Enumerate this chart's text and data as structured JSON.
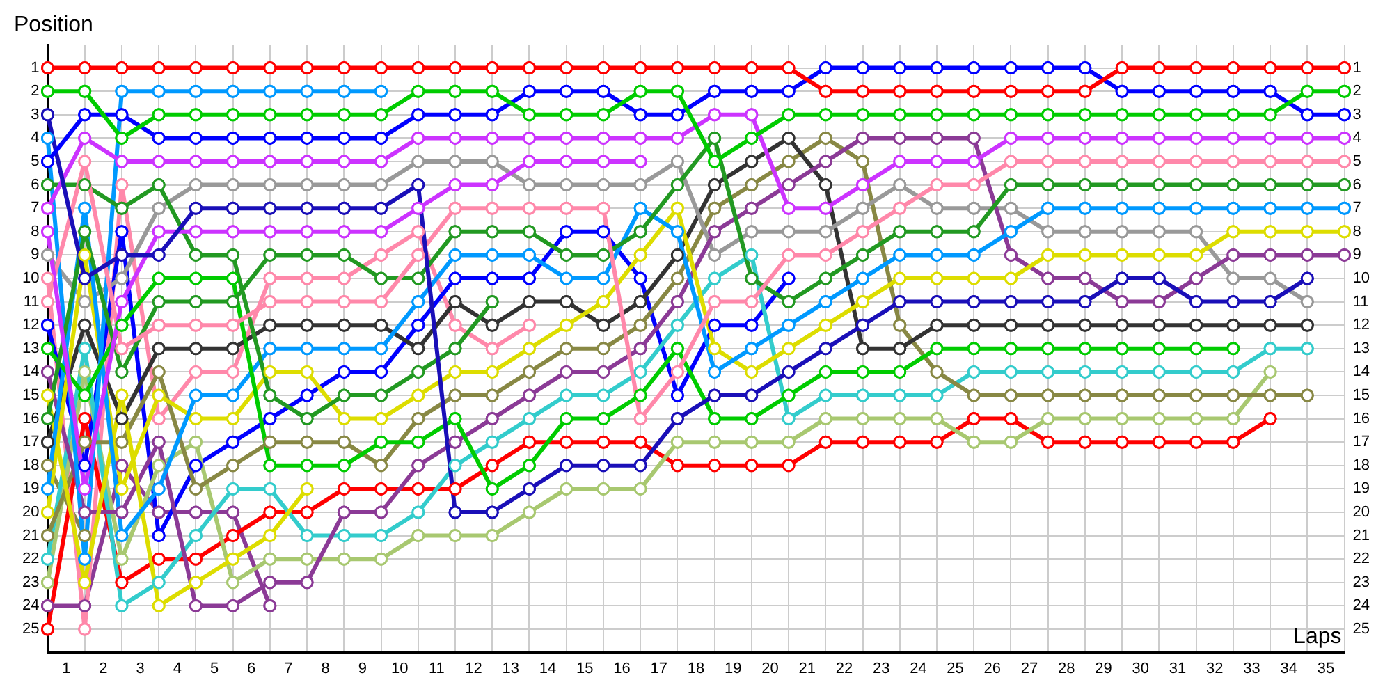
{
  "chart_data": {
    "type": "line",
    "xlabel": "Laps",
    "ylabel": "Position",
    "grid": true,
    "legend": false,
    "marker": "circle",
    "line_style": "solid",
    "x": [
      0,
      1,
      2,
      3,
      4,
      5,
      6,
      7,
      8,
      9,
      10,
      11,
      12,
      13,
      14,
      15,
      16,
      17,
      18,
      19,
      20,
      21,
      22,
      23,
      24,
      25,
      26,
      27,
      28,
      29,
      30,
      31,
      32,
      33,
      34,
      35
    ],
    "xlim": [
      0,
      35
    ],
    "xticks": [
      {
        "value": 0,
        "label": null
      },
      {
        "value": 0.5,
        "label": "1"
      },
      {
        "value": 1,
        "label": null
      },
      {
        "value": 1.5,
        "label": "2"
      },
      {
        "value": 2,
        "label": null
      },
      {
        "value": 2.5,
        "label": "3"
      },
      {
        "value": 3,
        "label": null
      },
      {
        "value": 3.5,
        "label": "4"
      },
      {
        "value": 4,
        "label": null
      },
      {
        "value": 4.5,
        "label": "5"
      },
      {
        "value": 5,
        "label": null
      },
      {
        "value": 5.5,
        "label": "6"
      },
      {
        "value": 6,
        "label": null
      },
      {
        "value": 6.5,
        "label": "7"
      },
      {
        "value": 7,
        "label": null
      },
      {
        "value": 7.5,
        "label": "8"
      },
      {
        "value": 8,
        "label": null
      },
      {
        "value": 8.5,
        "label": "9"
      },
      {
        "value": 9,
        "label": null
      },
      {
        "value": 9.5,
        "label": "10"
      },
      {
        "value": 10,
        "label": null
      },
      {
        "value": 10.5,
        "label": "11"
      },
      {
        "value": 11,
        "label": null
      },
      {
        "value": 11.5,
        "label": "12"
      },
      {
        "value": 12,
        "label": null
      },
      {
        "value": 12.5,
        "label": "13"
      },
      {
        "value": 13,
        "label": null
      },
      {
        "value": 13.5,
        "label": "14"
      },
      {
        "value": 14,
        "label": null
      },
      {
        "value": 14.5,
        "label": "15"
      },
      {
        "value": 15,
        "label": null
      },
      {
        "value": 15.5,
        "label": "16"
      },
      {
        "value": 16,
        "label": null
      },
      {
        "value": 16.5,
        "label": "17"
      },
      {
        "value": 17,
        "label": null
      },
      {
        "value": 17.5,
        "label": "18"
      },
      {
        "value": 18,
        "label": null
      },
      {
        "value": 18.5,
        "label": "19"
      },
      {
        "value": 19,
        "label": null
      },
      {
        "value": 19.5,
        "label": "20"
      },
      {
        "value": 20,
        "label": null
      },
      {
        "value": 20.5,
        "label": "21"
      },
      {
        "value": 21,
        "label": null
      },
      {
        "value": 21.5,
        "label": "22"
      },
      {
        "value": 22,
        "label": null
      },
      {
        "value": 22.5,
        "label": "23"
      },
      {
        "value": 23,
        "label": null
      },
      {
        "value": 23.5,
        "label": "24"
      },
      {
        "value": 24,
        "label": null
      },
      {
        "value": 24.5,
        "label": "25"
      },
      {
        "value": 25,
        "label": null
      },
      {
        "value": 25.5,
        "label": "26"
      },
      {
        "value": 26,
        "label": null
      },
      {
        "value": 26.5,
        "label": "27"
      },
      {
        "value": 27,
        "label": null
      },
      {
        "value": 27.5,
        "label": "28"
      },
      {
        "value": 28,
        "label": null
      },
      {
        "value": 28.5,
        "label": "29"
      },
      {
        "value": 29,
        "label": null
      },
      {
        "value": 29.5,
        "label": "30"
      },
      {
        "value": 30,
        "label": null
      },
      {
        "value": 30.5,
        "label": "31"
      },
      {
        "value": 31,
        "label": null
      },
      {
        "value": 31.5,
        "label": "32"
      },
      {
        "value": 32,
        "label": null
      },
      {
        "value": 32.5,
        "label": "33"
      },
      {
        "value": 33,
        "label": null
      },
      {
        "value": 33.5,
        "label": "34"
      },
      {
        "value": 34,
        "label": null
      },
      {
        "value": 34.5,
        "label": "35"
      },
      {
        "value": 35,
        "label": null
      }
    ],
    "ylim": [
      26,
      0
    ],
    "yticks": [
      1,
      2,
      3,
      4,
      5,
      6,
      7,
      8,
      9,
      10,
      11,
      12,
      13,
      14,
      15,
      16,
      17,
      18,
      19,
      20,
      21,
      22,
      23,
      24,
      25
    ],
    "y2lim": [
      26,
      0
    ],
    "y2ticks": [
      1,
      2,
      3,
      4,
      5,
      6,
      7,
      8,
      9,
      10,
      11,
      12,
      13,
      14,
      15,
      16,
      17,
      18,
      19,
      20,
      21,
      22,
      23,
      24,
      25
    ],
    "series": [
      {
        "color": "#ff0000",
        "values": [
          1,
          1,
          1,
          1,
          1,
          1,
          1,
          1,
          1,
          1,
          1,
          1,
          1,
          1,
          1,
          1,
          1,
          1,
          1,
          1,
          1,
          2,
          2,
          2,
          2,
          2,
          2,
          2,
          2,
          1,
          1,
          1,
          1,
          1,
          1,
          1
        ]
      },
      {
        "color": "#00cc00",
        "values": [
          2,
          2,
          4,
          3,
          3,
          3,
          3,
          3,
          3,
          3,
          2,
          2,
          2,
          3,
          3,
          3,
          2,
          2,
          5,
          4,
          3,
          3,
          3,
          3,
          3,
          3,
          3,
          3,
          3,
          3,
          3,
          3,
          3,
          3,
          2,
          2
        ]
      },
      {
        "color": "#0000ff",
        "values": [
          5,
          3,
          3,
          4,
          4,
          4,
          4,
          4,
          4,
          4,
          3,
          3,
          3,
          2,
          2,
          2,
          3,
          3,
          2,
          2,
          2,
          1,
          1,
          1,
          1,
          1,
          1,
          1,
          1,
          2,
          2,
          2,
          2,
          2,
          3,
          3
        ]
      },
      {
        "color": "#1a0fb8",
        "values": [
          3,
          10,
          9,
          9,
          7,
          7,
          7,
          7,
          7,
          7,
          6,
          20,
          20,
          19,
          18,
          18,
          18,
          16,
          15,
          15,
          14,
          13,
          12,
          11,
          11,
          11,
          11,
          11,
          11,
          10,
          10,
          11,
          11,
          11,
          10,
          null
        ]
      },
      {
        "color": "#cc33ff",
        "values": [
          7,
          4,
          5,
          5,
          5,
          5,
          5,
          5,
          5,
          5,
          4,
          4,
          4,
          4,
          4,
          4,
          4,
          4,
          3,
          3,
          7,
          7,
          6,
          5,
          5,
          5,
          4,
          4,
          4,
          4,
          4,
          4,
          4,
          4,
          4,
          4
        ]
      },
      {
        "color": "#cc33ff",
        "values": [
          8,
          19,
          11,
          8,
          8,
          8,
          8,
          8,
          8,
          8,
          7,
          6,
          6,
          5,
          5,
          5,
          5,
          null,
          null,
          null,
          null,
          null,
          null,
          null,
          null,
          null,
          null,
          null,
          null,
          null,
          null,
          null,
          null,
          null,
          null,
          null
        ]
      },
      {
        "color": "#ff88aa",
        "values": [
          11,
          5,
          13,
          12,
          12,
          12,
          11,
          11,
          11,
          11,
          9,
          7,
          7,
          7,
          7,
          7,
          16,
          14,
          11,
          11,
          9,
          9,
          8,
          7,
          6,
          6,
          5,
          5,
          5,
          5,
          5,
          5,
          5,
          5,
          5,
          5
        ]
      },
      {
        "color": "#229922",
        "values": [
          6,
          6,
          7,
          6,
          9,
          9,
          15,
          16,
          15,
          15,
          14,
          13,
          11,
          null,
          null,
          null,
          null,
          null,
          null,
          null,
          null,
          null,
          null,
          null,
          null,
          null,
          null,
          null,
          null,
          null,
          null,
          null,
          null,
          null,
          null,
          null
        ]
      },
      {
        "color": "#229922",
        "values": [
          16,
          8,
          14,
          11,
          11,
          11,
          9,
          9,
          9,
          10,
          10,
          8,
          8,
          8,
          9,
          9,
          8,
          6,
          4,
          10,
          11,
          10,
          9,
          8,
          8,
          8,
          6,
          6,
          6,
          6,
          6,
          6,
          6,
          6,
          6,
          6
        ]
      },
      {
        "color": "#00cc00",
        "values": [
          13,
          15,
          12,
          10,
          10,
          10,
          18,
          18,
          18,
          17,
          17,
          16,
          19,
          18,
          16,
          16,
          15,
          13,
          16,
          16,
          15,
          14,
          14,
          14,
          13,
          13,
          13,
          13,
          13,
          13,
          13,
          13,
          13,
          null,
          null,
          null
        ]
      },
      {
        "color": "#0099ff",
        "values": [
          4,
          22,
          2,
          2,
          2,
          2,
          2,
          2,
          2,
          2,
          null,
          null,
          null,
          null,
          null,
          null,
          null,
          null,
          null,
          null,
          null,
          null,
          null,
          null,
          null,
          null,
          null,
          null,
          null,
          null,
          null,
          null,
          null,
          null,
          null,
          null
        ]
      },
      {
        "color": "#0099ff",
        "values": [
          19,
          7,
          21,
          19,
          15,
          15,
          13,
          13,
          13,
          13,
          11,
          9,
          9,
          9,
          10,
          10,
          7,
          8,
          14,
          13,
          12,
          11,
          10,
          9,
          9,
          9,
          8,
          7,
          7,
          7,
          7,
          7,
          7,
          7,
          7,
          7
        ]
      },
      {
        "color": "#dddd00",
        "values": [
          20,
          9,
          19,
          15,
          16,
          16,
          14,
          14,
          16,
          16,
          15,
          14,
          14,
          13,
          12,
          11,
          9,
          7,
          13,
          14,
          13,
          12,
          11,
          10,
          10,
          10,
          10,
          9,
          9,
          9,
          9,
          9,
          8,
          8,
          8,
          8
        ]
      },
      {
        "color": "#dddd00",
        "values": [
          15,
          23,
          15,
          24,
          23,
          22,
          21,
          19,
          null,
          null,
          null,
          null,
          null,
          null,
          null,
          null,
          null,
          null,
          null,
          null,
          null,
          null,
          null,
          null,
          null,
          null,
          null,
          null,
          null,
          null,
          null,
          null,
          null,
          null,
          null,
          null
        ]
      },
      {
        "color": "#8b3a96",
        "values": [
          14,
          20,
          20,
          17,
          24,
          24,
          23,
          23,
          20,
          20,
          18,
          17,
          16,
          15,
          14,
          14,
          13,
          11,
          8,
          7,
          6,
          5,
          4,
          4,
          4,
          4,
          9,
          10,
          10,
          11,
          11,
          10,
          9,
          9,
          9,
          9
        ]
      },
      {
        "color": "#999999",
        "values": [
          9,
          11,
          10,
          7,
          6,
          6,
          6,
          6,
          6,
          6,
          5,
          5,
          5,
          6,
          6,
          6,
          6,
          5,
          9,
          8,
          8,
          8,
          7,
          6,
          7,
          7,
          7,
          8,
          8,
          8,
          8,
          8,
          10,
          10,
          11,
          null
        ]
      },
      {
        "color": "#333333",
        "values": [
          17,
          12,
          16,
          13,
          13,
          13,
          12,
          12,
          12,
          12,
          13,
          11,
          12,
          11,
          11,
          12,
          11,
          9,
          6,
          5,
          4,
          6,
          13,
          13,
          12,
          12,
          12,
          12,
          12,
          12,
          12,
          12,
          12,
          12,
          12,
          null
        ]
      },
      {
        "color": "#888844",
        "values": [
          21,
          17,
          17,
          14,
          19,
          18,
          17,
          17,
          17,
          18,
          16,
          15,
          15,
          14,
          13,
          13,
          12,
          10,
          7,
          6,
          5,
          4,
          5,
          12,
          14,
          15,
          15,
          15,
          15,
          15,
          15,
          15,
          15,
          15,
          15,
          null
        ]
      },
      {
        "color": "#33cccc",
        "values": [
          22,
          13,
          24,
          23,
          21,
          19,
          19,
          21,
          21,
          21,
          20,
          18,
          17,
          16,
          15,
          15,
          14,
          12,
          10,
          9,
          16,
          15,
          15,
          15,
          15,
          14,
          14,
          14,
          14,
          14,
          14,
          14,
          14,
          13,
          13,
          null
        ]
      },
      {
        "color": "#a8c870",
        "values": [
          23,
          14,
          22,
          18,
          17,
          23,
          22,
          22,
          22,
          22,
          21,
          21,
          21,
          20,
          19,
          19,
          19,
          17,
          17,
          17,
          17,
          16,
          16,
          16,
          16,
          17,
          17,
          16,
          16,
          16,
          16,
          16,
          16,
          14,
          null,
          null
        ]
      },
      {
        "color": "#ff0000",
        "values": [
          25,
          16,
          23,
          22,
          22,
          21,
          20,
          20,
          19,
          19,
          19,
          19,
          18,
          17,
          17,
          17,
          17,
          18,
          18,
          18,
          18,
          17,
          17,
          17,
          17,
          16,
          16,
          17,
          17,
          17,
          17,
          17,
          17,
          16,
          null,
          null
        ]
      },
      {
        "color": "#0000ff",
        "values": [
          12,
          18,
          8,
          21,
          18,
          17,
          16,
          15,
          14,
          14,
          12,
          10,
          10,
          10,
          8,
          8,
          10,
          15,
          12,
          12,
          10,
          null,
          null,
          null,
          null,
          null,
          null,
          null,
          null,
          null,
          null,
          null,
          null,
          null,
          null,
          null
        ]
      },
      {
        "color": "#ff88aa",
        "values": [
          10,
          25,
          6,
          16,
          14,
          14,
          10,
          10,
          10,
          9,
          8,
          12,
          13,
          12,
          null,
          null,
          null,
          null,
          null,
          null,
          null,
          null,
          null,
          null,
          null,
          null,
          null,
          null,
          null,
          null,
          null,
          null,
          null,
          null,
          null,
          null
        ]
      },
      {
        "color": "#8b3a96",
        "values": [
          24,
          24,
          18,
          20,
          20,
          20,
          24,
          null,
          null,
          null,
          null,
          null,
          null,
          null,
          null,
          null,
          null,
          null,
          null,
          null,
          null,
          null,
          null,
          null,
          null,
          null,
          null,
          null,
          null,
          null,
          null,
          null,
          null,
          null,
          null,
          null
        ]
      },
      {
        "color": "#888844",
        "values": [
          18,
          21,
          null,
          null,
          null,
          null,
          null,
          null,
          null,
          null,
          null,
          null,
          null,
          null,
          null,
          null,
          null,
          null,
          null,
          null,
          null,
          null,
          null,
          null,
          null,
          null,
          null,
          null,
          null,
          null,
          null,
          null,
          null,
          null,
          null,
          null
        ]
      }
    ]
  }
}
